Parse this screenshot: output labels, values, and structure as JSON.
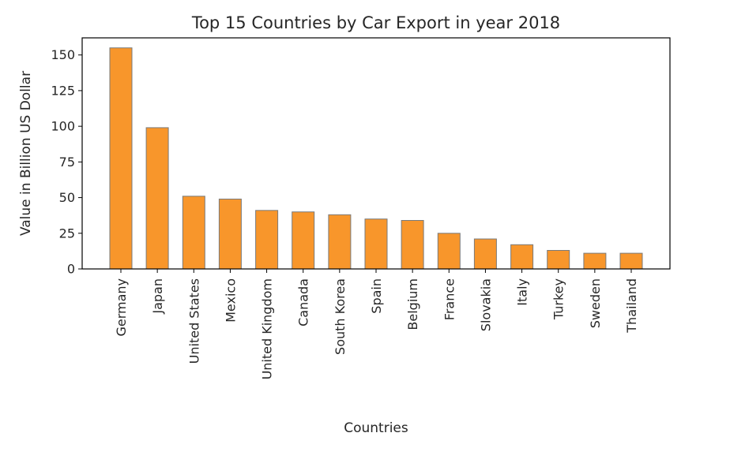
{
  "chart_data": {
    "type": "bar",
    "title": "Top 15 Countries by Car Export in year 2018",
    "xlabel": "Countries",
    "ylabel": "Value in Billion US Dollar",
    "categories": [
      "Germany",
      "Japan",
      "United States",
      "Mexico",
      "United Kingdom",
      "Canada",
      "South Korea",
      "Spain",
      "Belgium",
      "France",
      "Slovakia",
      "Italy",
      "Turkey",
      "Sweden",
      "Thailand"
    ],
    "values": [
      155,
      99,
      51,
      49,
      41,
      40,
      38,
      35,
      34,
      25,
      21,
      17,
      13,
      11,
      11
    ],
    "ylim": [
      0,
      162
    ],
    "yticks": [
      0,
      25,
      50,
      75,
      100,
      125,
      150
    ],
    "grid": false,
    "bar_color": "#f8962b",
    "edge_color": "#7a7a7a"
  }
}
